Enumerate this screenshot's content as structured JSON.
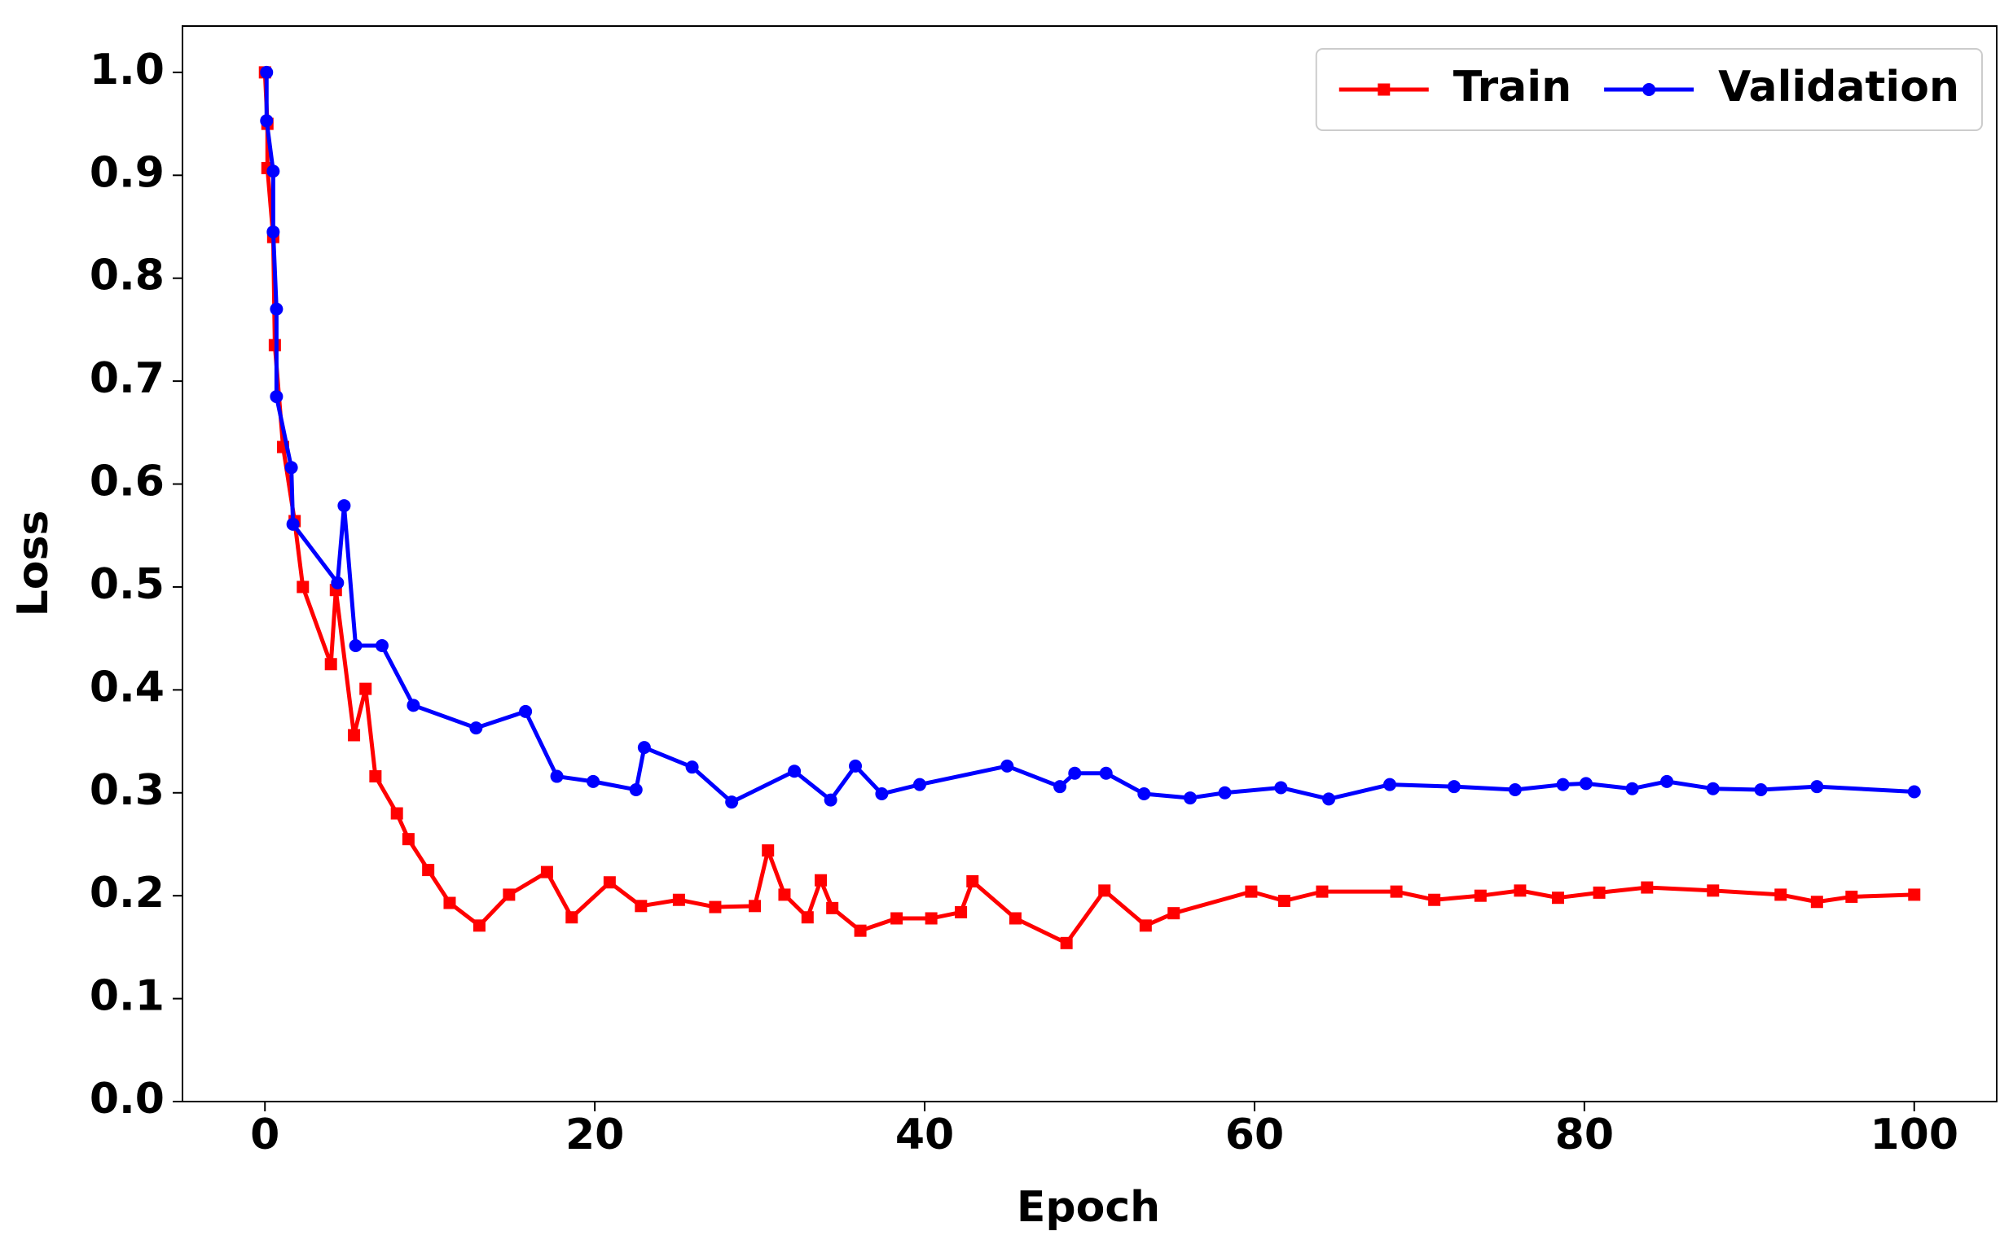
{
  "chart_data": {
    "type": "line",
    "xlabel": "Epoch",
    "ylabel": "Loss",
    "xlim": [
      -5,
      105
    ],
    "ylim": [
      0,
      1.045
    ],
    "xticks": [
      0,
      20,
      40,
      60,
      80,
      100
    ],
    "yticks": [
      {
        "value": 0,
        "label": "0.0"
      },
      0.1,
      0.2,
      0.3,
      0.4,
      0.5,
      0.6,
      0.7,
      0.8,
      0.9,
      {
        "value": 1,
        "label": "1.0"
      }
    ],
    "legend": "upper right",
    "series": [
      {
        "name": "Train",
        "color": "#ff0000",
        "marker": "square",
        "x": [
          0,
          0.15,
          0.15,
          0.5,
          0.6,
          1.1,
          1.8,
          2.3,
          4.0,
          4.3,
          5.4,
          6.1,
          6.7,
          8.0,
          8.7,
          9.9,
          11.2,
          13.0,
          14.8,
          17.1,
          18.6,
          20.9,
          22.8,
          25.1,
          27.3,
          29.7,
          30.5,
          31.5,
          32.9,
          33.7,
          34.4,
          36.1,
          38.3,
          40.4,
          42.2,
          42.9,
          45.5,
          48.6,
          50.9,
          53.4,
          55.1,
          59.8,
          61.8,
          64.1,
          68.6,
          70.9,
          73.7,
          76.1,
          78.4,
          80.9,
          83.8,
          87.8,
          91.9,
          94.1,
          96.2,
          100
        ],
        "values": [
          1.0,
          0.95,
          0.907,
          0.84,
          0.735,
          0.636,
          0.564,
          0.5,
          0.425,
          0.497,
          0.356,
          0.401,
          0.316,
          0.28,
          0.255,
          0.225,
          0.193,
          0.171,
          0.201,
          0.223,
          0.179,
          0.213,
          0.19,
          0.196,
          0.189,
          0.19,
          0.244,
          0.201,
          0.179,
          0.215,
          0.188,
          0.166,
          0.178,
          0.178,
          0.184,
          0.214,
          0.178,
          0.154,
          0.205,
          0.171,
          0.183,
          0.204,
          0.195,
          0.204,
          0.204,
          0.196,
          0.2,
          0.205,
          0.198,
          0.203,
          0.208,
          0.205,
          0.201,
          0.194,
          0.199,
          0.201
        ]
      },
      {
        "name": "Validation",
        "color": "#0000ff",
        "marker": "circle",
        "x": [
          0.1,
          0.1,
          0.5,
          0.5,
          0.7,
          0.7,
          1.6,
          1.7,
          4.4,
          4.8,
          5.5,
          7.1,
          9.0,
          12.8,
          15.8,
          17.7,
          19.9,
          22.5,
          23.0,
          25.9,
          28.3,
          32.1,
          34.3,
          35.8,
          37.4,
          39.7,
          45.0,
          48.2,
          49.1,
          51.0,
          53.3,
          56.1,
          58.2,
          61.6,
          64.5,
          68.2,
          72.1,
          75.8,
          78.7,
          80.1,
          82.9,
          85.0,
          87.8,
          90.7,
          94.1,
          100
        ],
        "values": [
          1.0,
          0.953,
          0.904,
          0.845,
          0.77,
          0.685,
          0.616,
          0.561,
          0.504,
          0.579,
          0.443,
          0.443,
          0.385,
          0.363,
          0.379,
          0.316,
          0.311,
          0.303,
          0.344,
          0.325,
          0.291,
          0.321,
          0.293,
          0.326,
          0.299,
          0.308,
          0.326,
          0.306,
          0.319,
          0.319,
          0.299,
          0.295,
          0.3,
          0.305,
          0.294,
          0.308,
          0.306,
          0.303,
          0.308,
          0.309,
          0.304,
          0.311,
          0.304,
          0.303,
          0.306,
          0.301
        ]
      }
    ]
  }
}
